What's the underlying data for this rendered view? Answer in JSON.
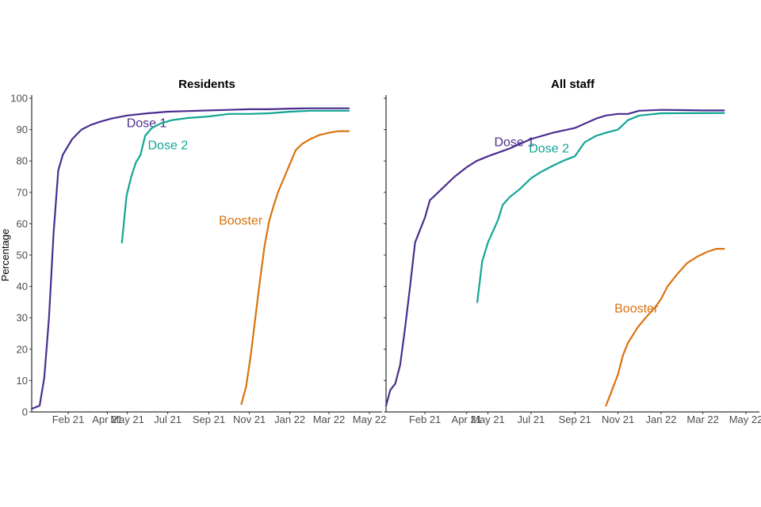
{
  "colors": {
    "Dose 1": "#4b2d8f",
    "Dose 2": "#12a594",
    "Booster": "#d9730d"
  },
  "ylabel": "Percentage",
  "chart_data": [
    {
      "type": "line",
      "title": "Residents",
      "xlabel": "",
      "ylabel": "Percentage",
      "ylim": [
        0,
        100
      ],
      "yticks": [
        0,
        10,
        20,
        30,
        40,
        50,
        60,
        70,
        80,
        90,
        100
      ],
      "xlim": [
        "2020-12-08",
        "2022-05-20"
      ],
      "xticks": [
        {
          "date": "2021-02-01",
          "label": "Feb 21"
        },
        {
          "date": "2021-04-01",
          "label": "Apr 21"
        },
        {
          "date": "2021-05-01",
          "label": "May 21"
        },
        {
          "date": "2021-07-01",
          "label": "Jul 21"
        },
        {
          "date": "2021-09-01",
          "label": "Sep 21"
        },
        {
          "date": "2021-11-01",
          "label": "Nov 21"
        },
        {
          "date": "2022-01-01",
          "label": "Jan 22"
        },
        {
          "date": "2022-03-01",
          "label": "Mar 22"
        },
        {
          "date": "2022-05-01",
          "label": "May 22"
        }
      ],
      "grid": false,
      "series": [
        {
          "name": "Dose 1",
          "label_at": [
            "2021-04-30",
            92
          ],
          "points": [
            [
              "2020-12-08",
              1
            ],
            [
              "2020-12-20",
              2
            ],
            [
              "2020-12-27",
              11
            ],
            [
              "2021-01-03",
              30
            ],
            [
              "2021-01-10",
              57
            ],
            [
              "2021-01-17",
              77
            ],
            [
              "2021-01-24",
              82
            ],
            [
              "2021-02-07",
              87
            ],
            [
              "2021-02-21",
              90
            ],
            [
              "2021-03-07",
              91.5
            ],
            [
              "2021-03-21",
              92.5
            ],
            [
              "2021-04-07",
              93.5
            ],
            [
              "2021-05-01",
              94.5
            ],
            [
              "2021-06-01",
              95.2
            ],
            [
              "2021-07-01",
              95.7
            ],
            [
              "2021-08-01",
              95.9
            ],
            [
              "2021-09-01",
              96.1
            ],
            [
              "2021-10-01",
              96.3
            ],
            [
              "2021-11-01",
              96.5
            ],
            [
              "2021-12-01",
              96.5
            ],
            [
              "2022-01-01",
              96.7
            ],
            [
              "2022-02-01",
              96.8
            ],
            [
              "2022-03-01",
              96.8
            ],
            [
              "2022-03-31",
              96.8
            ]
          ]
        },
        {
          "name": "Dose 2",
          "label_at": [
            "2021-06-01",
            85
          ],
          "points": [
            [
              "2021-04-23",
              54
            ],
            [
              "2021-04-30",
              69
            ],
            [
              "2021-05-07",
              75
            ],
            [
              "2021-05-14",
              79.5
            ],
            [
              "2021-05-21",
              82
            ],
            [
              "2021-05-28",
              88
            ],
            [
              "2021-06-07",
              90.5
            ],
            [
              "2021-06-21",
              92
            ],
            [
              "2021-07-07",
              93
            ],
            [
              "2021-08-01",
              93.7
            ],
            [
              "2021-09-01",
              94.2
            ],
            [
              "2021-10-01",
              95
            ],
            [
              "2021-11-01",
              95
            ],
            [
              "2021-12-01",
              95.2
            ],
            [
              "2022-01-01",
              95.7
            ],
            [
              "2022-02-01",
              96
            ],
            [
              "2022-03-01",
              96
            ],
            [
              "2022-03-31",
              96
            ]
          ]
        },
        {
          "name": "Booster",
          "label_at": [
            "2021-09-16",
            61
          ],
          "points": [
            [
              "2021-10-20",
              2.5
            ],
            [
              "2021-10-27",
              8
            ],
            [
              "2021-11-03",
              18
            ],
            [
              "2021-11-10",
              30
            ],
            [
              "2021-11-17",
              42
            ],
            [
              "2021-11-24",
              53
            ],
            [
              "2021-12-01",
              61
            ],
            [
              "2021-12-08",
              66
            ],
            [
              "2021-12-15",
              70.5
            ],
            [
              "2021-12-22",
              74
            ],
            [
              "2022-01-01",
              79
            ],
            [
              "2022-01-10",
              83.5
            ],
            [
              "2022-01-20",
              85.5
            ],
            [
              "2022-02-01",
              87
            ],
            [
              "2022-02-15",
              88.3
            ],
            [
              "2022-03-01",
              89
            ],
            [
              "2022-03-15",
              89.5
            ],
            [
              "2022-03-31",
              89.5
            ]
          ]
        }
      ]
    },
    {
      "type": "line",
      "title": "All staff",
      "xlabel": "",
      "ylabel": "",
      "ylim": [
        0,
        100
      ],
      "yticks": [
        0,
        10,
        20,
        30,
        40,
        50,
        60,
        70,
        80,
        90,
        100
      ],
      "xlim": [
        "2020-12-08",
        "2022-05-20"
      ],
      "xticks": [
        {
          "date": "2021-02-01",
          "label": "Feb 21"
        },
        {
          "date": "2021-04-01",
          "label": "Apr 21"
        },
        {
          "date": "2021-05-01",
          "label": "May 21"
        },
        {
          "date": "2021-07-01",
          "label": "Jul 21"
        },
        {
          "date": "2021-09-01",
          "label": "Sep 21"
        },
        {
          "date": "2021-11-01",
          "label": "Nov 21"
        },
        {
          "date": "2022-01-01",
          "label": "Jan 22"
        },
        {
          "date": "2022-03-01",
          "label": "Mar 22"
        },
        {
          "date": "2022-05-01",
          "label": "May 22"
        }
      ],
      "grid": false,
      "series": [
        {
          "name": "Dose 1",
          "label_at": [
            "2021-05-10",
            86
          ],
          "points": [
            [
              "2020-12-08",
              2
            ],
            [
              "2020-12-14",
              7
            ],
            [
              "2020-12-21",
              9
            ],
            [
              "2020-12-28",
              15
            ],
            [
              "2021-01-04",
              27
            ],
            [
              "2021-01-11",
              40
            ],
            [
              "2021-01-18",
              54
            ],
            [
              "2021-01-25",
              58
            ],
            [
              "2021-02-01",
              62
            ],
            [
              "2021-02-08",
              67.5
            ],
            [
              "2021-02-15",
              69
            ],
            [
              "2021-03-01",
              72
            ],
            [
              "2021-03-15",
              75
            ],
            [
              "2021-04-01",
              78
            ],
            [
              "2021-04-15",
              80
            ],
            [
              "2021-05-01",
              81.5
            ],
            [
              "2021-06-01",
              84
            ],
            [
              "2021-07-01",
              87
            ],
            [
              "2021-08-01",
              89
            ],
            [
              "2021-09-01",
              90.5
            ],
            [
              "2021-10-01",
              93.5
            ],
            [
              "2021-10-15",
              94.5
            ],
            [
              "2021-11-01",
              95
            ],
            [
              "2021-11-15",
              95
            ],
            [
              "2021-12-01",
              96
            ],
            [
              "2022-01-01",
              96.3
            ],
            [
              "2022-02-01",
              96.2
            ],
            [
              "2022-03-01",
              96.1
            ],
            [
              "2022-03-31",
              96.1
            ]
          ]
        },
        {
          "name": "Dose 2",
          "label_at": [
            "2021-06-28",
            84
          ],
          "points": [
            [
              "2021-04-16",
              35
            ],
            [
              "2021-04-23",
              48
            ],
            [
              "2021-05-01",
              54
            ],
            [
              "2021-05-15",
              61
            ],
            [
              "2021-05-22",
              66
            ],
            [
              "2021-06-01",
              68.5
            ],
            [
              "2021-06-15",
              71
            ],
            [
              "2021-07-01",
              74.5
            ],
            [
              "2021-07-15",
              76.5
            ],
            [
              "2021-08-01",
              78.5
            ],
            [
              "2021-08-15",
              80
            ],
            [
              "2021-09-01",
              81.5
            ],
            [
              "2021-09-15",
              86
            ],
            [
              "2021-10-01",
              88
            ],
            [
              "2021-10-15",
              89
            ],
            [
              "2021-11-01",
              90
            ],
            [
              "2021-11-15",
              93
            ],
            [
              "2021-12-01",
              94.5
            ],
            [
              "2022-01-01",
              95.2
            ],
            [
              "2022-03-31",
              95.3
            ]
          ]
        },
        {
          "name": "Booster",
          "label_at": [
            "2021-10-27",
            33
          ],
          "points": [
            [
              "2021-10-15",
              2
            ],
            [
              "2021-10-22",
              6
            ],
            [
              "2021-11-01",
              12
            ],
            [
              "2021-11-08",
              18
            ],
            [
              "2021-11-15",
              22
            ],
            [
              "2021-11-29",
              27
            ],
            [
              "2021-12-10",
              30
            ],
            [
              "2021-12-24",
              33.5
            ],
            [
              "2022-01-01",
              36
            ],
            [
              "2022-01-10",
              40
            ],
            [
              "2022-01-24",
              44
            ],
            [
              "2022-02-07",
              47.5
            ],
            [
              "2022-02-21",
              49.5
            ],
            [
              "2022-03-07",
              51
            ],
            [
              "2022-03-20",
              52
            ],
            [
              "2022-03-31",
              52
            ]
          ]
        }
      ]
    }
  ]
}
